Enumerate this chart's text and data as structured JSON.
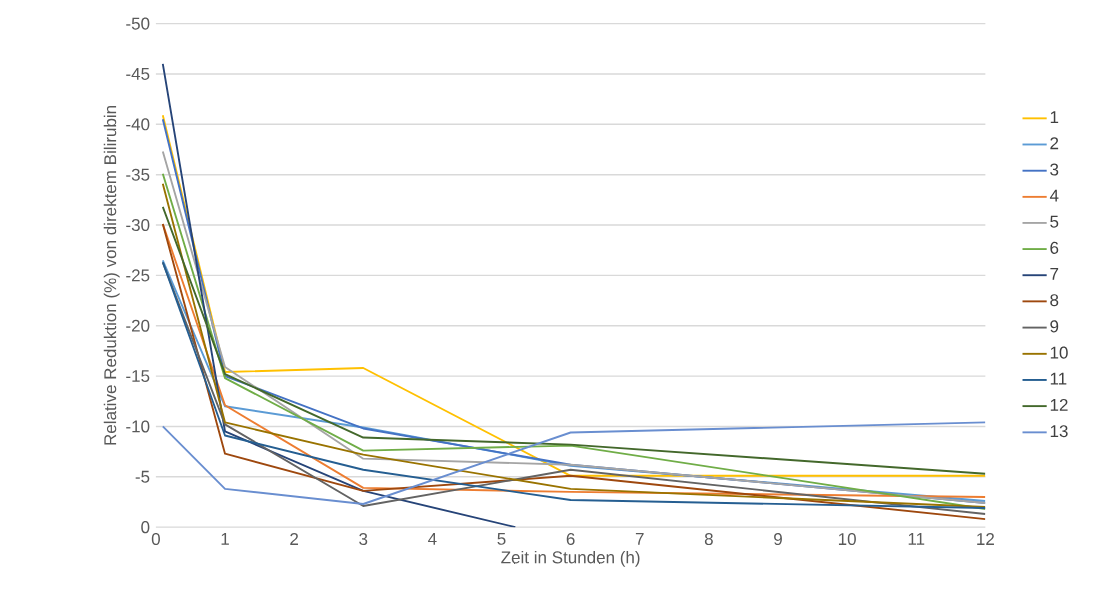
{
  "chart_data": {
    "type": "line",
    "xlabel": "Zeit in Stunden (h)",
    "ylabel": "Relative Reduktion (%) von direktem Bilirubin",
    "x": [
      0.1,
      1,
      3,
      6,
      12
    ],
    "series": [
      {
        "name": "1",
        "color": "#ffc000",
        "values": [
          -40.9,
          -15.4,
          -15.8,
          -5.1,
          -5.1
        ]
      },
      {
        "name": "2",
        "color": "#5b9bd5",
        "values": [
          -26.5,
          -12.0,
          -9.9,
          -6.1,
          -2.6
        ]
      },
      {
        "name": "3",
        "color": "#4472c4",
        "values": [
          -40.5,
          -15.0,
          -9.8,
          -6.2,
          -2.4
        ]
      },
      {
        "name": "4",
        "color": "#ed7d31",
        "values": [
          -30.1,
          -12.1,
          -3.9,
          -3.5,
          -3.0
        ]
      },
      {
        "name": "5",
        "color": "#a5a5a5",
        "values": [
          -37.3,
          -15.9,
          -6.8,
          -6.2,
          -2.4
        ]
      },
      {
        "name": "6",
        "color": "#70ad47",
        "values": [
          -35.1,
          -14.8,
          -7.6,
          -8.1,
          -1.8
        ]
      },
      {
        "name": "7",
        "color": "#264478",
        "x": [
          0.1,
          1,
          3,
          5.2
        ],
        "values": [
          -46.0,
          -9.5,
          -3.6,
          0
        ]
      },
      {
        "name": "8",
        "color": "#9e480e",
        "values": [
          -30.1,
          -7.3,
          -3.6,
          -5.1,
          -0.8
        ]
      },
      {
        "name": "9",
        "color": "#636363",
        "values": [
          -26.3,
          -10.2,
          -2.1,
          -5.7,
          -1.3
        ]
      },
      {
        "name": "10",
        "color": "#997300",
        "values": [
          -34.1,
          -10.4,
          -7.2,
          -3.8,
          -2.0
        ]
      },
      {
        "name": "11",
        "color": "#255e91",
        "values": [
          -26.3,
          -9.1,
          -5.7,
          -2.7,
          -1.9
        ]
      },
      {
        "name": "12",
        "color": "#43682b",
        "values": [
          -31.8,
          -15.2,
          -8.9,
          -8.2,
          -5.3
        ]
      },
      {
        "name": "13",
        "color": "#698ed0",
        "values": [
          -10.0,
          -3.8,
          -2.3,
          -9.4,
          -10.4
        ]
      }
    ],
    "xlim": [
      0,
      12
    ],
    "xticks": [
      0,
      1,
      2,
      3,
      4,
      5,
      6,
      7,
      8,
      9,
      10,
      11,
      12
    ],
    "ylim": [
      0,
      -50
    ],
    "yticks": [
      0,
      -5,
      -10,
      -15,
      -20,
      -25,
      -30,
      -35,
      -40,
      -45,
      -50
    ],
    "grid": "y",
    "legend": "right",
    "marker": "none",
    "line_style": "solid"
  }
}
